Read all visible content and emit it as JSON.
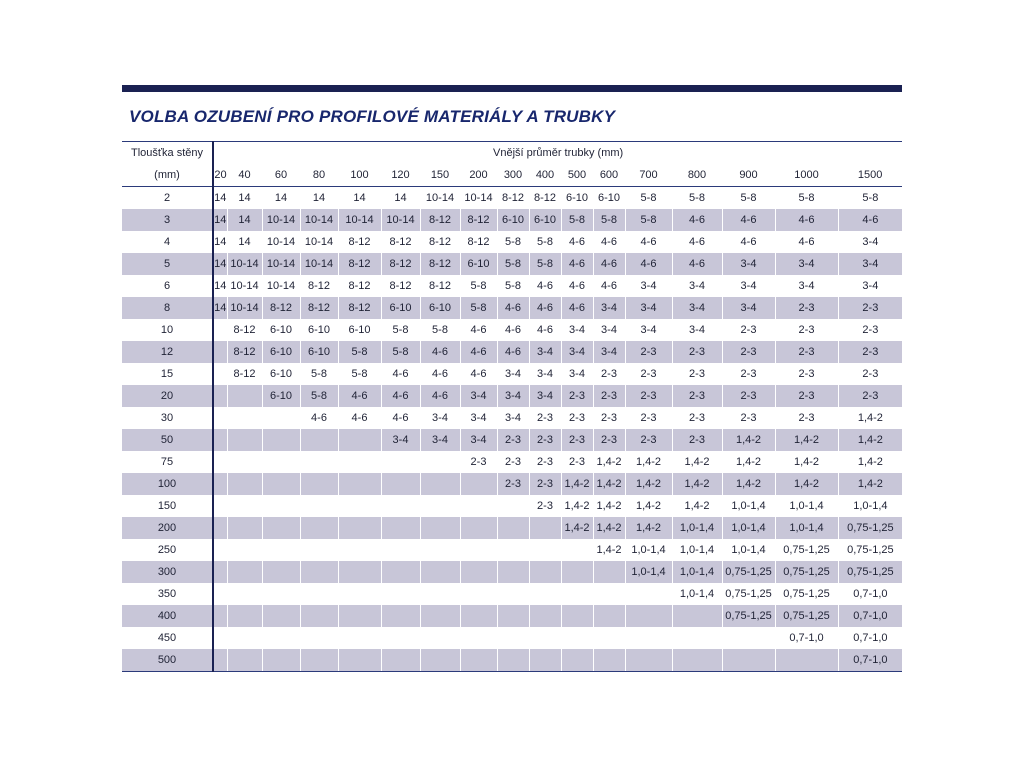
{
  "page": {
    "title": "VOLBA OZUBENÍ PRO PROFILOVÉ MATERIÁLY A TRUBKY"
  },
  "colors": {
    "navy_bar": "#1a2152",
    "title_color": "#18276d",
    "line_color": "#2b3a7a",
    "row_shade": "#c8c6d8",
    "text_color": "#1f2235"
  },
  "table": {
    "row_header_title": "Tloušťka stěny",
    "row_header_unit": "(mm)",
    "column_group_title": "Vnější průměr trubky (mm)",
    "columns": [
      "20",
      "40",
      "60",
      "80",
      "100",
      "120",
      "150",
      "200",
      "300",
      "400",
      "500",
      "600",
      "700",
      "800",
      "900",
      "1000",
      "1500"
    ],
    "rows": [
      {
        "thickness": "2",
        "values": [
          "14",
          "14",
          "14",
          "14",
          "14",
          "14",
          "10-14",
          "10-14",
          "8-12",
          "8-12",
          "6-10",
          "6-10",
          "5-8",
          "5-8",
          "5-8",
          "5-8",
          "5-8"
        ]
      },
      {
        "thickness": "3",
        "values": [
          "14",
          "14",
          "10-14",
          "10-14",
          "10-14",
          "10-14",
          "8-12",
          "8-12",
          "6-10",
          "6-10",
          "5-8",
          "5-8",
          "5-8",
          "4-6",
          "4-6",
          "4-6",
          "4-6"
        ]
      },
      {
        "thickness": "4",
        "values": [
          "14",
          "14",
          "10-14",
          "10-14",
          "8-12",
          "8-12",
          "8-12",
          "8-12",
          "5-8",
          "5-8",
          "4-6",
          "4-6",
          "4-6",
          "4-6",
          "4-6",
          "4-6",
          "3-4"
        ]
      },
      {
        "thickness": "5",
        "values": [
          "14",
          "10-14",
          "10-14",
          "10-14",
          "8-12",
          "8-12",
          "8-12",
          "6-10",
          "5-8",
          "5-8",
          "4-6",
          "4-6",
          "4-6",
          "4-6",
          "3-4",
          "3-4",
          "3-4"
        ]
      },
      {
        "thickness": "6",
        "values": [
          "14",
          "10-14",
          "10-14",
          "8-12",
          "8-12",
          "8-12",
          "8-12",
          "5-8",
          "5-8",
          "4-6",
          "4-6",
          "4-6",
          "3-4",
          "3-4",
          "3-4",
          "3-4",
          "3-4"
        ]
      },
      {
        "thickness": "8",
        "values": [
          "14",
          "10-14",
          "8-12",
          "8-12",
          "8-12",
          "6-10",
          "6-10",
          "5-8",
          "4-6",
          "4-6",
          "4-6",
          "3-4",
          "3-4",
          "3-4",
          "3-4",
          "2-3",
          "2-3"
        ]
      },
      {
        "thickness": "10",
        "values": [
          "",
          "8-12",
          "6-10",
          "6-10",
          "6-10",
          "5-8",
          "5-8",
          "4-6",
          "4-6",
          "4-6",
          "3-4",
          "3-4",
          "3-4",
          "3-4",
          "2-3",
          "2-3",
          "2-3"
        ]
      },
      {
        "thickness": "12",
        "values": [
          "",
          "8-12",
          "6-10",
          "6-10",
          "5-8",
          "5-8",
          "4-6",
          "4-6",
          "4-6",
          "3-4",
          "3-4",
          "3-4",
          "2-3",
          "2-3",
          "2-3",
          "2-3",
          "2-3"
        ]
      },
      {
        "thickness": "15",
        "values": [
          "",
          "8-12",
          "6-10",
          "5-8",
          "5-8",
          "4-6",
          "4-6",
          "4-6",
          "3-4",
          "3-4",
          "3-4",
          "2-3",
          "2-3",
          "2-3",
          "2-3",
          "2-3",
          "2-3"
        ]
      },
      {
        "thickness": "20",
        "values": [
          "",
          "",
          "6-10",
          "5-8",
          "4-6",
          "4-6",
          "4-6",
          "3-4",
          "3-4",
          "3-4",
          "2-3",
          "2-3",
          "2-3",
          "2-3",
          "2-3",
          "2-3",
          "2-3"
        ]
      },
      {
        "thickness": "30",
        "values": [
          "",
          "",
          "",
          "4-6",
          "4-6",
          "4-6",
          "3-4",
          "3-4",
          "3-4",
          "2-3",
          "2-3",
          "2-3",
          "2-3",
          "2-3",
          "2-3",
          "2-3",
          "1,4-2"
        ]
      },
      {
        "thickness": "50",
        "values": [
          "",
          "",
          "",
          "",
          "",
          "3-4",
          "3-4",
          "3-4",
          "2-3",
          "2-3",
          "2-3",
          "2-3",
          "2-3",
          "2-3",
          "1,4-2",
          "1,4-2",
          "1,4-2"
        ]
      },
      {
        "thickness": "75",
        "values": [
          "",
          "",
          "",
          "",
          "",
          "",
          "",
          "2-3",
          "2-3",
          "2-3",
          "2-3",
          "1,4-2",
          "1,4-2",
          "1,4-2",
          "1,4-2",
          "1,4-2",
          "1,4-2"
        ]
      },
      {
        "thickness": "100",
        "values": [
          "",
          "",
          "",
          "",
          "",
          "",
          "",
          "",
          "2-3",
          "2-3",
          "1,4-2",
          "1,4-2",
          "1,4-2",
          "1,4-2",
          "1,4-2",
          "1,4-2",
          "1,4-2"
        ]
      },
      {
        "thickness": "150",
        "values": [
          "",
          "",
          "",
          "",
          "",
          "",
          "",
          "",
          "",
          "2-3",
          "1,4-2",
          "1,4-2",
          "1,4-2",
          "1,4-2",
          "1,0-1,4",
          "1,0-1,4",
          "1,0-1,4"
        ]
      },
      {
        "thickness": "200",
        "values": [
          "",
          "",
          "",
          "",
          "",
          "",
          "",
          "",
          "",
          "",
          "1,4-2",
          "1,4-2",
          "1,4-2",
          "1,0-1,4",
          "1,0-1,4",
          "1,0-1,4",
          "0,75-1,25"
        ]
      },
      {
        "thickness": "250",
        "values": [
          "",
          "",
          "",
          "",
          "",
          "",
          "",
          "",
          "",
          "",
          "",
          "1,4-2",
          "1,0-1,4",
          "1,0-1,4",
          "1,0-1,4",
          "0,75-1,25",
          "0,75-1,25"
        ]
      },
      {
        "thickness": "300",
        "values": [
          "",
          "",
          "",
          "",
          "",
          "",
          "",
          "",
          "",
          "",
          "",
          "",
          "1,0-1,4",
          "1,0-1,4",
          "0,75-1,25",
          "0,75-1,25",
          "0,75-1,25"
        ]
      },
      {
        "thickness": "350",
        "values": [
          "",
          "",
          "",
          "",
          "",
          "",
          "",
          "",
          "",
          "",
          "",
          "",
          "",
          "1,0-1,4",
          "0,75-1,25",
          "0,75-1,25",
          "0,7-1,0"
        ]
      },
      {
        "thickness": "400",
        "values": [
          "",
          "",
          "",
          "",
          "",
          "",
          "",
          "",
          "",
          "",
          "",
          "",
          "",
          "",
          "0,75-1,25",
          "0,75-1,25",
          "0,7-1,0"
        ]
      },
      {
        "thickness": "450",
        "values": [
          "",
          "",
          "",
          "",
          "",
          "",
          "",
          "",
          "",
          "",
          "",
          "",
          "",
          "",
          "",
          "0,7-1,0",
          "0,7-1,0"
        ]
      },
      {
        "thickness": "500",
        "values": [
          "",
          "",
          "",
          "",
          "",
          "",
          "",
          "",
          "",
          "",
          "",
          "",
          "",
          "",
          "",
          "",
          "0,7-1,0"
        ]
      }
    ]
  }
}
